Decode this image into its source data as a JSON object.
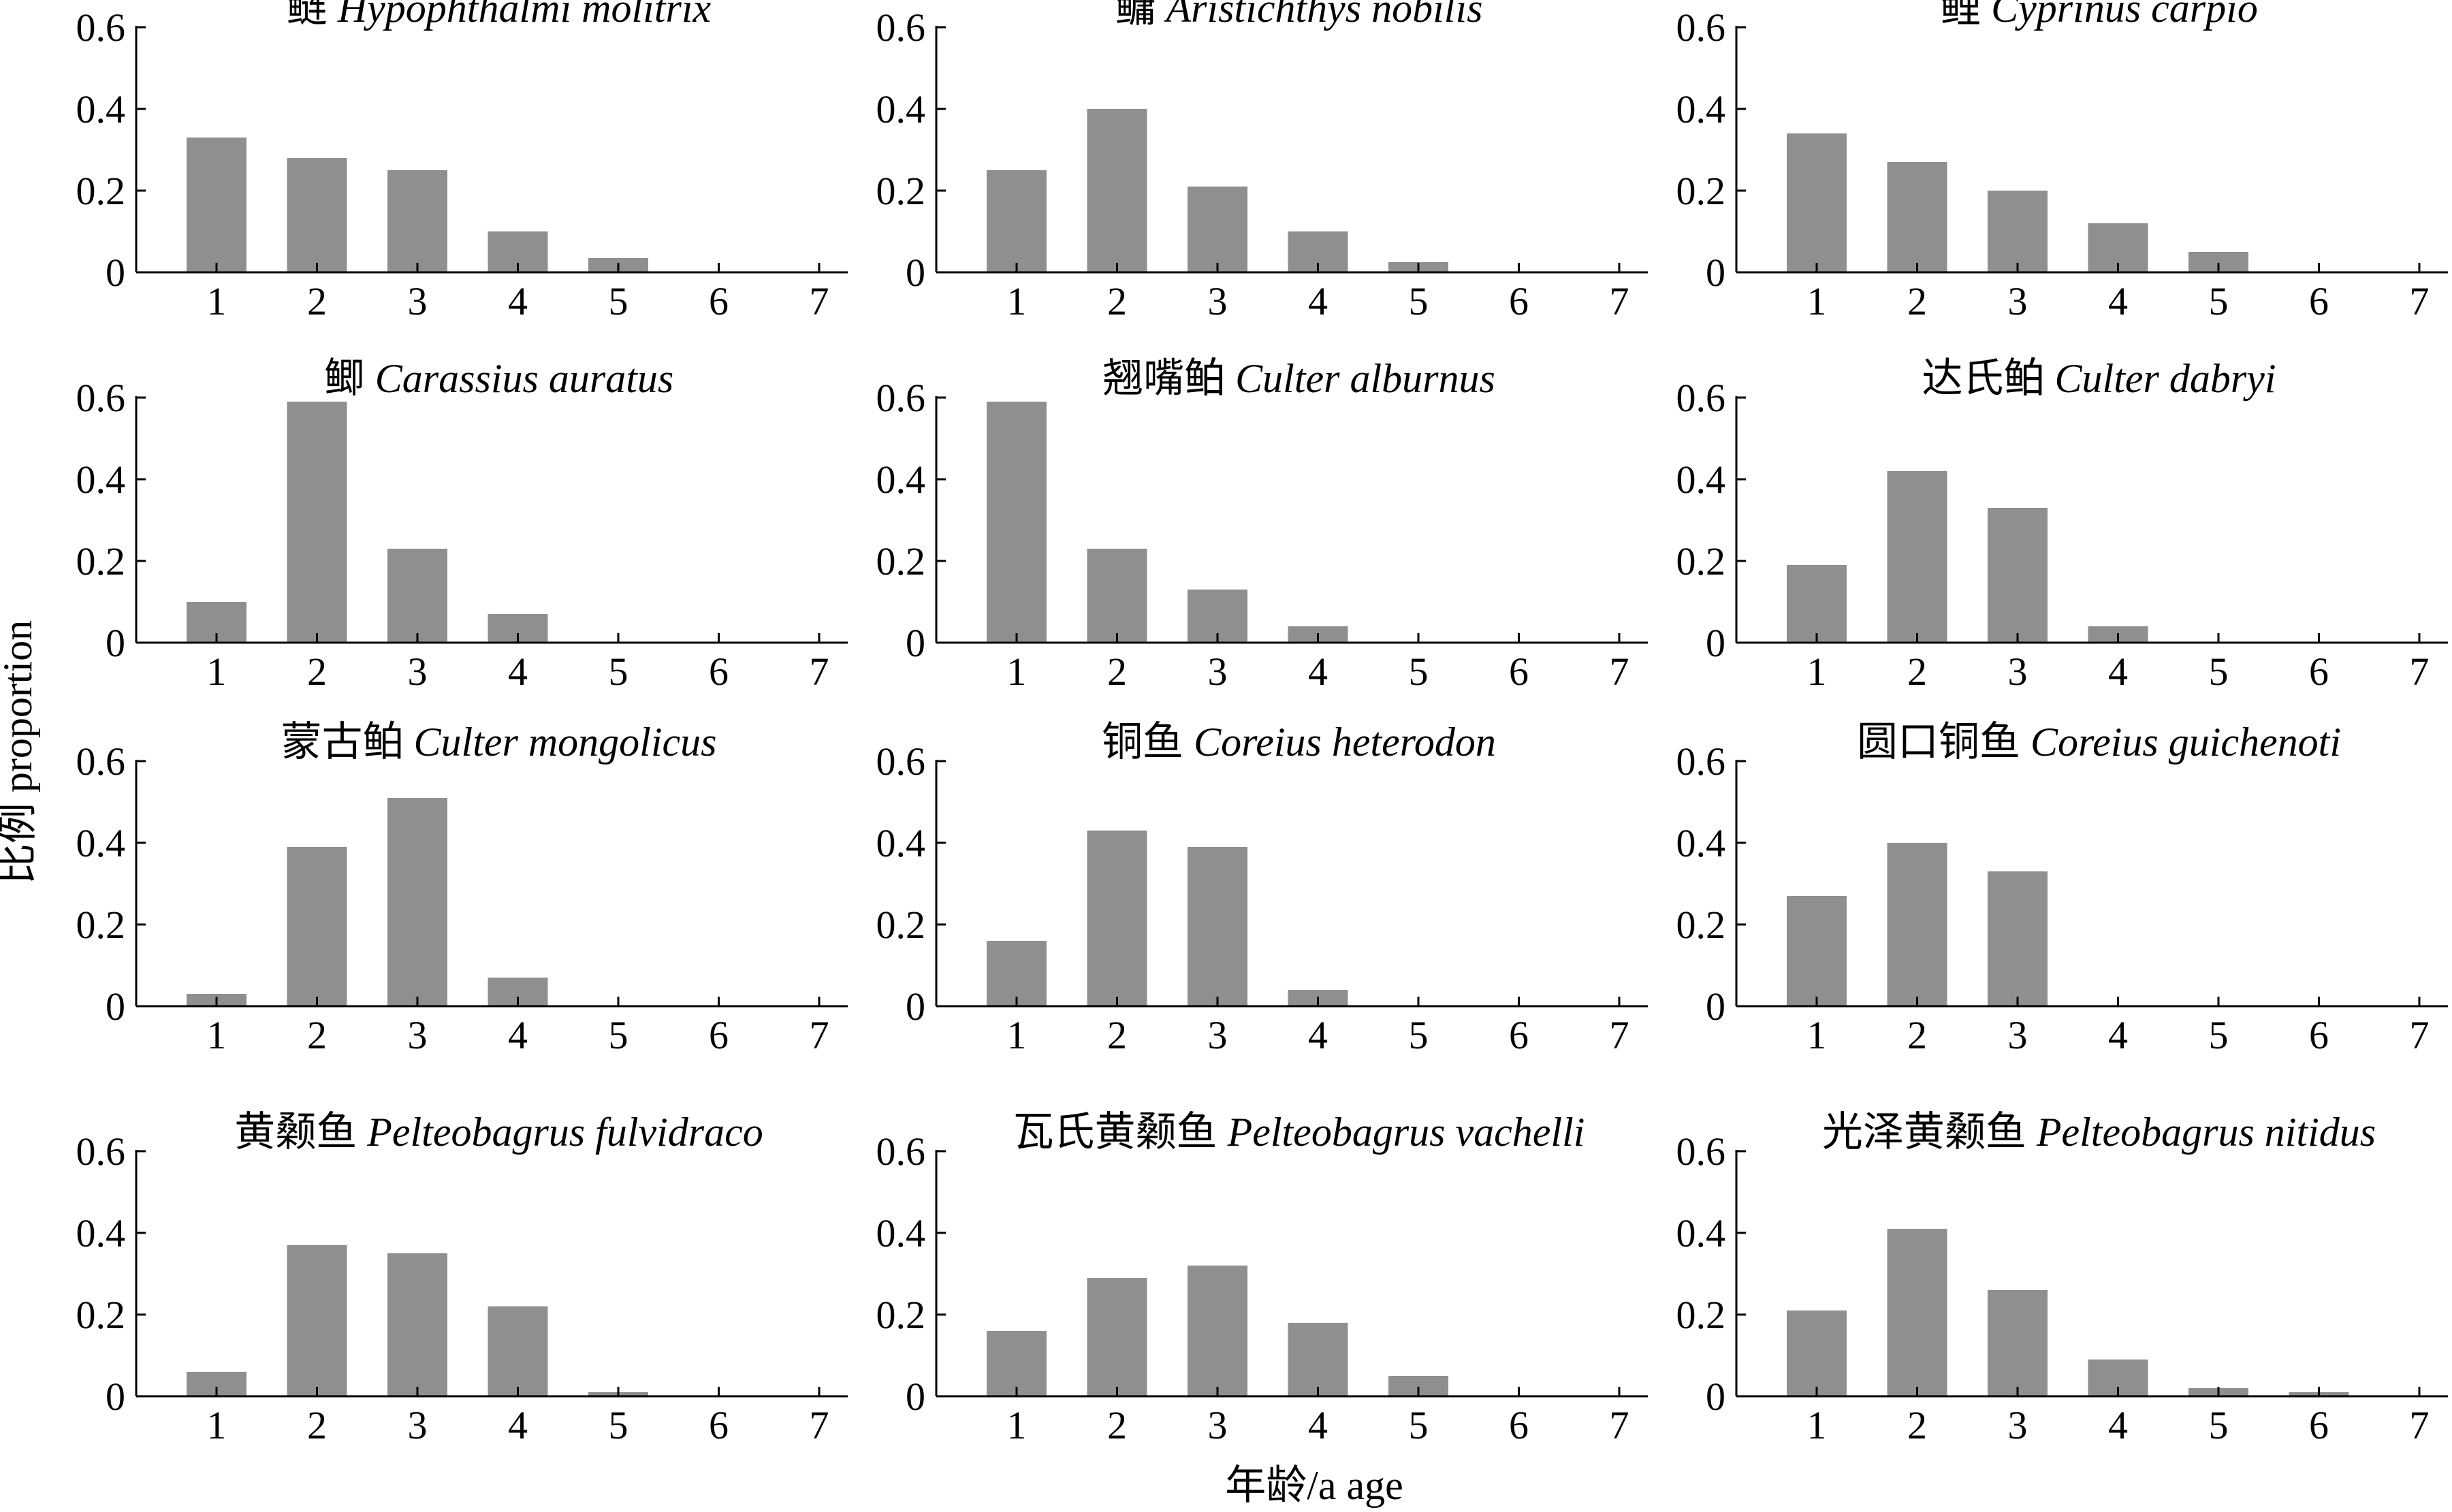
{
  "figure": {
    "xlabel": "年龄/a age",
    "ylabel": "比例 proportion",
    "bar_color": "#8f8f8f",
    "axis_color": "#000000"
  },
  "chart_data": [
    {
      "type": "bar",
      "title_cn": "鲢",
      "title_latin": "Hypophthalmi molitrix",
      "categories": [
        "1",
        "2",
        "3",
        "4",
        "5",
        "6",
        "7"
      ],
      "values": [
        0.33,
        0.28,
        0.25,
        0.1,
        0.035,
        0,
        0
      ],
      "ylim": [
        0,
        0.6
      ],
      "yticks": [
        "0",
        "0.2",
        "0.4",
        "0.6"
      ]
    },
    {
      "type": "bar",
      "title_cn": "鳙",
      "title_latin": "Aristichthys nobilis",
      "categories": [
        "1",
        "2",
        "3",
        "4",
        "5",
        "6",
        "7"
      ],
      "values": [
        0.25,
        0.4,
        0.21,
        0.1,
        0.025,
        0,
        0
      ],
      "ylim": [
        0,
        0.6
      ],
      "yticks": [
        "0",
        "0.2",
        "0.4",
        "0.6"
      ]
    },
    {
      "type": "bar",
      "title_cn": "鲤",
      "title_latin": "Cyprinus carpio",
      "categories": [
        "1",
        "2",
        "3",
        "4",
        "5",
        "6",
        "7"
      ],
      "values": [
        0.34,
        0.27,
        0.2,
        0.12,
        0.05,
        0,
        0
      ],
      "ylim": [
        0,
        0.6
      ],
      "yticks": [
        "0",
        "0.2",
        "0.4",
        "0.6"
      ]
    },
    {
      "type": "bar",
      "title_cn": "鲫",
      "title_latin": "Carassius auratus",
      "categories": [
        "1",
        "2",
        "3",
        "4",
        "5",
        "6",
        "7"
      ],
      "values": [
        0.1,
        0.59,
        0.23,
        0.07,
        0,
        0,
        0
      ],
      "ylim": [
        0,
        0.6
      ],
      "yticks": [
        "0",
        "0.2",
        "0.4",
        "0.6"
      ]
    },
    {
      "type": "bar",
      "title_cn": "翘嘴鲌",
      "title_latin": "Culter alburnus",
      "categories": [
        "1",
        "2",
        "3",
        "4",
        "5",
        "6",
        "7"
      ],
      "values": [
        0.59,
        0.23,
        0.13,
        0.04,
        0,
        0,
        0
      ],
      "ylim": [
        0,
        0.6
      ],
      "yticks": [
        "0",
        "0.2",
        "0.4",
        "0.6"
      ]
    },
    {
      "type": "bar",
      "title_cn": "达氏鲌",
      "title_latin": "Culter dabryi",
      "categories": [
        "1",
        "2",
        "3",
        "4",
        "5",
        "6",
        "7"
      ],
      "values": [
        0.19,
        0.42,
        0.33,
        0.04,
        0,
        0,
        0
      ],
      "ylim": [
        0,
        0.6
      ],
      "yticks": [
        "0",
        "0.2",
        "0.4",
        "0.6"
      ]
    },
    {
      "type": "bar",
      "title_cn": "蒙古鲌",
      "title_latin": "Culter mongolicus",
      "categories": [
        "1",
        "2",
        "3",
        "4",
        "5",
        "6",
        "7"
      ],
      "values": [
        0.03,
        0.39,
        0.51,
        0.07,
        0,
        0,
        0
      ],
      "ylim": [
        0,
        0.6
      ],
      "yticks": [
        "0",
        "0.2",
        "0.4",
        "0.6"
      ]
    },
    {
      "type": "bar",
      "title_cn": "铜鱼",
      "title_latin": "Coreius heterodon",
      "categories": [
        "1",
        "2",
        "3",
        "4",
        "5",
        "6",
        "7"
      ],
      "values": [
        0.16,
        0.43,
        0.39,
        0.04,
        0,
        0,
        0
      ],
      "ylim": [
        0,
        0.6
      ],
      "yticks": [
        "0",
        "0.2",
        "0.4",
        "0.6"
      ]
    },
    {
      "type": "bar",
      "title_cn": "圆口铜鱼",
      "title_latin": "Coreius guichenoti",
      "categories": [
        "1",
        "2",
        "3",
        "4",
        "5",
        "6",
        "7"
      ],
      "values": [
        0.27,
        0.4,
        0.33,
        0,
        0,
        0,
        0
      ],
      "ylim": [
        0,
        0.6
      ],
      "yticks": [
        "0",
        "0.2",
        "0.4",
        "0.6"
      ]
    },
    {
      "type": "bar",
      "title_cn": "黄颡鱼",
      "title_latin": "Pelteobagrus fulvidraco",
      "categories": [
        "1",
        "2",
        "3",
        "4",
        "5",
        "6",
        "7"
      ],
      "values": [
        0.06,
        0.37,
        0.35,
        0.22,
        0.01,
        0,
        0
      ],
      "ylim": [
        0,
        0.6
      ],
      "yticks": [
        "0",
        "0.2",
        "0.4",
        "0.6"
      ]
    },
    {
      "type": "bar",
      "title_cn": "瓦氏黄颡鱼",
      "title_latin": "Pelteobagrus vachelli",
      "categories": [
        "1",
        "2",
        "3",
        "4",
        "5",
        "6",
        "7"
      ],
      "values": [
        0.16,
        0.29,
        0.32,
        0.18,
        0.05,
        0,
        0
      ],
      "ylim": [
        0,
        0.6
      ],
      "yticks": [
        "0",
        "0.2",
        "0.4",
        "0.6"
      ]
    },
    {
      "type": "bar",
      "title_cn": "光泽黄颡鱼",
      "title_latin": "Pelteobagrus nitidus",
      "categories": [
        "1",
        "2",
        "3",
        "4",
        "5",
        "6",
        "7"
      ],
      "values": [
        0.21,
        0.41,
        0.26,
        0.09,
        0.02,
        0.01,
        0
      ],
      "ylim": [
        0,
        0.6
      ],
      "yticks": [
        "0",
        "0.2",
        "0.4",
        "0.6"
      ]
    }
  ]
}
